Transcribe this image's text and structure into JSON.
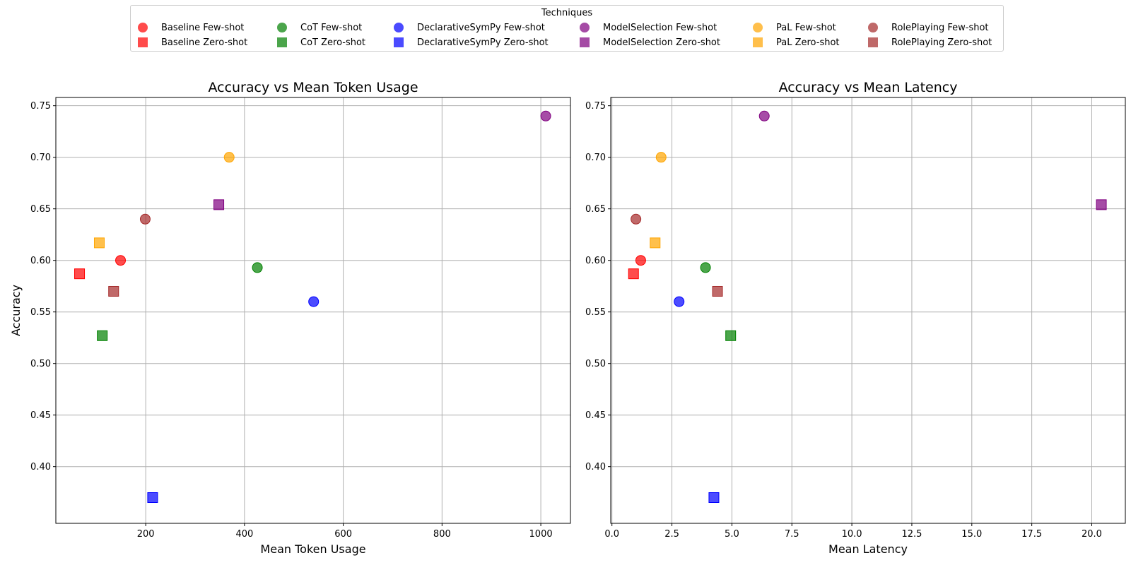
{
  "legend": {
    "title": "Techniques",
    "entries": [
      {
        "label": "Baseline Few-shot",
        "technique": "Baseline",
        "shot": "Few-shot",
        "marker": "circle"
      },
      {
        "label": "Baseline Zero-shot",
        "technique": "Baseline",
        "shot": "Zero-shot",
        "marker": "square"
      },
      {
        "label": "CoT Few-shot",
        "technique": "CoT",
        "shot": "Few-shot",
        "marker": "circle"
      },
      {
        "label": "CoT Zero-shot",
        "technique": "CoT",
        "shot": "Zero-shot",
        "marker": "square"
      },
      {
        "label": "DeclarativeSymPy Few-shot",
        "technique": "DeclarativeSymPy",
        "shot": "Few-shot",
        "marker": "circle"
      },
      {
        "label": "DeclarativeSymPy Zero-shot",
        "technique": "DeclarativeSymPy",
        "shot": "Zero-shot",
        "marker": "square"
      },
      {
        "label": "ModelSelection Few-shot",
        "technique": "ModelSelection",
        "shot": "Few-shot",
        "marker": "circle"
      },
      {
        "label": "ModelSelection Zero-shot",
        "technique": "ModelSelection",
        "shot": "Zero-shot",
        "marker": "square"
      },
      {
        "label": "PaL Few-shot",
        "technique": "PaL",
        "shot": "Few-shot",
        "marker": "circle"
      },
      {
        "label": "PaL Zero-shot",
        "technique": "PaL",
        "shot": "Zero-shot",
        "marker": "square"
      },
      {
        "label": "RolePlaying Few-shot",
        "technique": "RolePlaying",
        "shot": "Few-shot",
        "marker": "circle"
      },
      {
        "label": "RolePlaying Zero-shot",
        "technique": "RolePlaying",
        "shot": "Zero-shot",
        "marker": "square"
      }
    ],
    "placement": "top-center"
  },
  "colors": {
    "Baseline": "#ff0000",
    "CoT": "#008000",
    "DeclarativeSymPy": "#0000ff",
    "ModelSelection": "#800080",
    "PaL": "#ffa500",
    "RolePlaying": "#a52a2a",
    "grid": "#b0b0b0"
  },
  "chart_data": [
    {
      "type": "scatter",
      "title": "Accuracy vs Mean Token Usage",
      "xlabel": "Mean Token Usage",
      "ylabel": "Accuracy",
      "xlim": [
        18,
        1060
      ],
      "ylim": [
        0.345,
        0.758
      ],
      "xticks": [
        200,
        400,
        600,
        800,
        1000
      ],
      "xtick_labels": [
        "200",
        "400",
        "600",
        "800",
        "1000"
      ],
      "yticks": [
        0.4,
        0.45,
        0.5,
        0.55,
        0.6,
        0.65,
        0.7,
        0.75
      ],
      "ytick_labels": [
        "0.40",
        "0.45",
        "0.50",
        "0.55",
        "0.60",
        "0.65",
        "0.70",
        "0.75"
      ],
      "grid": true,
      "points": [
        {
          "series": "Baseline Few-shot",
          "x": 149,
          "y": 0.6
        },
        {
          "series": "Baseline Zero-shot",
          "x": 66,
          "y": 0.587
        },
        {
          "series": "CoT Few-shot",
          "x": 426,
          "y": 0.593
        },
        {
          "series": "CoT Zero-shot",
          "x": 112,
          "y": 0.527
        },
        {
          "series": "DeclarativeSymPy Few-shot",
          "x": 540,
          "y": 0.56
        },
        {
          "series": "DeclarativeSymPy Zero-shot",
          "x": 214,
          "y": 0.37
        },
        {
          "series": "ModelSelection Few-shot",
          "x": 1010,
          "y": 0.74
        },
        {
          "series": "ModelSelection Zero-shot",
          "x": 348,
          "y": 0.654
        },
        {
          "series": "PaL Few-shot",
          "x": 369,
          "y": 0.7
        },
        {
          "series": "PaL Zero-shot",
          "x": 106,
          "y": 0.617
        },
        {
          "series": "RolePlaying Few-shot",
          "x": 199,
          "y": 0.64
        },
        {
          "series": "RolePlaying Zero-shot",
          "x": 135,
          "y": 0.57
        }
      ]
    },
    {
      "type": "scatter",
      "title": "Accuracy vs Mean Latency",
      "xlabel": "Mean Latency",
      "ylabel": "",
      "xlim": [
        -0.05,
        21.4
      ],
      "ylim": [
        0.345,
        0.758
      ],
      "xticks": [
        0.0,
        2.5,
        5.0,
        7.5,
        10.0,
        12.5,
        15.0,
        17.5,
        20.0
      ],
      "xtick_labels": [
        "0.0",
        "2.5",
        "5.0",
        "7.5",
        "10.0",
        "12.5",
        "15.0",
        "17.5",
        "20.0"
      ],
      "yticks": [
        0.4,
        0.45,
        0.5,
        0.55,
        0.6,
        0.65,
        0.7,
        0.75
      ],
      "ytick_labels": [
        "0.40",
        "0.45",
        "0.50",
        "0.55",
        "0.60",
        "0.65",
        "0.70",
        "0.75"
      ],
      "grid": true,
      "points": [
        {
          "series": "Baseline Few-shot",
          "x": 1.2,
          "y": 0.6
        },
        {
          "series": "Baseline Zero-shot",
          "x": 0.9,
          "y": 0.587
        },
        {
          "series": "CoT Few-shot",
          "x": 3.9,
          "y": 0.593
        },
        {
          "series": "CoT Zero-shot",
          "x": 4.95,
          "y": 0.527
        },
        {
          "series": "DeclarativeSymPy Few-shot",
          "x": 2.8,
          "y": 0.56
        },
        {
          "series": "DeclarativeSymPy Zero-shot",
          "x": 4.25,
          "y": 0.37
        },
        {
          "series": "ModelSelection Few-shot",
          "x": 6.35,
          "y": 0.74
        },
        {
          "series": "ModelSelection Zero-shot",
          "x": 20.4,
          "y": 0.654
        },
        {
          "series": "PaL Few-shot",
          "x": 2.05,
          "y": 0.7
        },
        {
          "series": "PaL Zero-shot",
          "x": 1.8,
          "y": 0.617
        },
        {
          "series": "RolePlaying Few-shot",
          "x": 1.0,
          "y": 0.64
        },
        {
          "series": "RolePlaying Zero-shot",
          "x": 4.4,
          "y": 0.57
        }
      ]
    }
  ]
}
